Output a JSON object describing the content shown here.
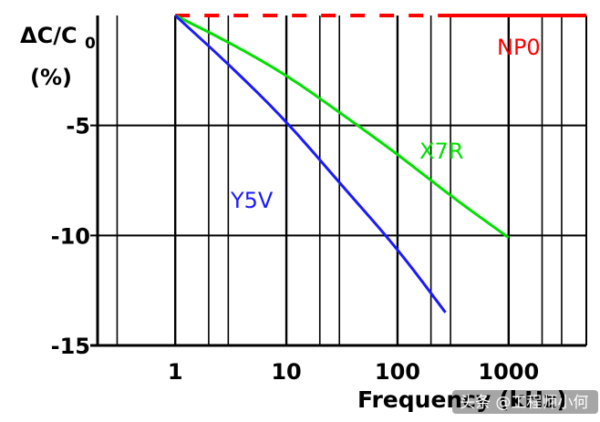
{
  "chart_data": {
    "type": "line",
    "title": "",
    "ylabel": "ΔC/C0",
    "ylabel_subscript": "0",
    "ylabel_unit": "(%)",
    "xlabel": "Frequency (kHz)",
    "xscale": "log",
    "xlim": [
      0.2,
      5000
    ],
    "ylim": [
      -15,
      0
    ],
    "grid": true,
    "x_tick_labels": [
      "1",
      "10",
      "100",
      "1000"
    ],
    "y_ticks": [
      -5,
      -10,
      -15
    ],
    "y_tick_labels": [
      "-5",
      "-10",
      "-15"
    ],
    "series": [
      {
        "name": "NP0",
        "color": "#ff0000",
        "style": "dashed-then-solid",
        "x": [
          1,
          10,
          100,
          1000,
          5000
        ],
        "y": [
          0,
          0,
          0,
          0,
          0
        ]
      },
      {
        "name": "X7R",
        "color": "#00e000",
        "x": [
          1,
          3,
          10,
          30,
          100,
          300,
          1000
        ],
        "y": [
          0,
          -1.2,
          -2.7,
          -4.4,
          -6.3,
          -8.2,
          -10.1
        ]
      },
      {
        "name": "Y5V",
        "color": "#1a1aff",
        "x": [
          1,
          3,
          10,
          30,
          100,
          270
        ],
        "y": [
          0,
          -2.2,
          -4.8,
          -7.6,
          -10.6,
          -13.5
        ]
      }
    ]
  },
  "watermark": "头条 @工程师小何"
}
